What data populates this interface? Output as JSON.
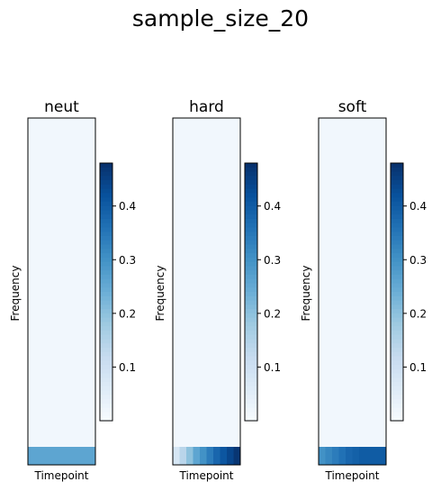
{
  "chart_data": {
    "type": "heatmap",
    "suptitle": "sample_size_20",
    "colormap": "Blues",
    "panels": [
      {
        "title": "neut",
        "xlabel": "Timepoint",
        "ylabel": "Frequency",
        "colorbar": {
          "ticks": [
            "0.1",
            "0.2",
            "0.3",
            "0.4"
          ],
          "range": [
            0.0,
            0.48
          ]
        },
        "n_timepoints": 10,
        "background_value": 0.015,
        "bottom_row_values": [
          0.26,
          0.26,
          0.26,
          0.26,
          0.26,
          0.26,
          0.26,
          0.26,
          0.26,
          0.26
        ]
      },
      {
        "title": "hard",
        "xlabel": "Timepoint",
        "ylabel": "Frequency",
        "colorbar": {
          "ticks": [
            "0.1",
            "0.2",
            "0.3",
            "0.4"
          ],
          "range": [
            0.0,
            0.48
          ]
        },
        "n_timepoints": 10,
        "background_value": 0.015,
        "bottom_row_values": [
          0.08,
          0.14,
          0.2,
          0.26,
          0.3,
          0.34,
          0.38,
          0.41,
          0.44,
          0.47
        ]
      },
      {
        "title": "soft",
        "xlabel": "Timepoint",
        "ylabel": "Frequency",
        "colorbar": {
          "ticks": [
            "0.1",
            "0.2",
            "0.3",
            "0.4"
          ],
          "range": [
            0.0,
            0.48
          ]
        },
        "n_timepoints": 10,
        "background_value": 0.015,
        "bottom_row_values": [
          0.3,
          0.32,
          0.34,
          0.36,
          0.38,
          0.39,
          0.4,
          0.4,
          0.4,
          0.4
        ]
      }
    ]
  }
}
